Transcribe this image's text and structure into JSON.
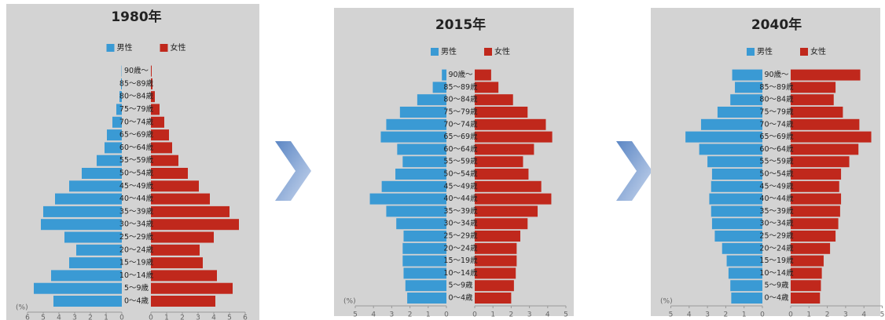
{
  "chart_data": [
    {
      "type": "pyramid",
      "title": "1980年",
      "unit_label": "(%)",
      "categories": [
        "0～4歳",
        "5～9歳",
        "10～14歳",
        "15～19歳",
        "20～24歳",
        "25～29歳",
        "30～34歳",
        "35～39歳",
        "40～44歳",
        "45～49歳",
        "50～54歳",
        "55～59歳",
        "60～64歳",
        "65～69歳",
        "70～74歳",
        "75～79歳",
        "80～84歳",
        "85～89歳",
        "90歳～"
      ],
      "series": [
        {
          "name": "男性",
          "color": "#3a9ad4",
          "values": [
            4.35,
            5.6,
            4.5,
            3.35,
            2.9,
            3.65,
            5.15,
            5.0,
            4.25,
            3.35,
            2.55,
            1.6,
            1.1,
            0.95,
            0.6,
            0.35,
            0.15,
            0.05,
            0.02
          ]
        },
        {
          "name": "女性",
          "color": "#c0281c",
          "values": [
            4.1,
            5.2,
            4.2,
            3.3,
            3.1,
            4.0,
            5.6,
            5.0,
            3.75,
            3.05,
            2.35,
            1.75,
            1.35,
            1.15,
            0.85,
            0.55,
            0.25,
            0.1,
            0.05
          ]
        }
      ],
      "xlim": [
        0,
        6
      ],
      "xticks": [
        0,
        1,
        2,
        3,
        4,
        5,
        6
      ]
    },
    {
      "type": "pyramid",
      "title": "2015年",
      "unit_label": "(%)",
      "categories": [
        "0～4歳",
        "5～9歳",
        "10～14歳",
        "15～19歳",
        "20～24歳",
        "25～29歳",
        "30～34歳",
        "35～39歳",
        "40～44歳",
        "45～49歳",
        "50～54歳",
        "55～59歳",
        "60～64歳",
        "65～69歳",
        "70～74歳",
        "75～79歳",
        "80～84歳",
        "85～89歳",
        "90歳～"
      ],
      "series": [
        {
          "name": "男性",
          "color": "#3a9ad4",
          "values": [
            2.15,
            2.25,
            2.35,
            2.4,
            2.4,
            2.35,
            2.75,
            3.3,
            4.2,
            3.55,
            2.8,
            2.4,
            2.7,
            3.6,
            3.3,
            2.55,
            1.6,
            0.75,
            0.25
          ]
        },
        {
          "name": "女性",
          "color": "#c0281c",
          "values": [
            2.0,
            2.15,
            2.25,
            2.3,
            2.3,
            2.5,
            2.9,
            3.45,
            4.2,
            3.65,
            2.95,
            2.65,
            3.25,
            4.25,
            3.9,
            2.9,
            2.1,
            1.3,
            0.9
          ]
        }
      ],
      "xlim": [
        0,
        5
      ],
      "xticks": [
        0,
        1,
        2,
        3,
        4,
        5
      ]
    },
    {
      "type": "pyramid",
      "title": "2040年",
      "unit_label": "(%)",
      "categories": [
        "0～4歳",
        "5～9歳",
        "10～14歳",
        "15～19歳",
        "20～24歳",
        "25～29歳",
        "30～34歳",
        "35～39歳",
        "40～44歳",
        "45～49歳",
        "50～54歳",
        "55～59歳",
        "60～64歳",
        "65～69歳",
        "70～74歳",
        "75～79歳",
        "80～84歳",
        "85～89歳",
        "90歳～"
      ],
      "series": [
        {
          "name": "男性",
          "color": "#3a9ad4",
          "values": [
            1.7,
            1.75,
            1.85,
            1.95,
            2.2,
            2.6,
            2.75,
            2.8,
            2.9,
            2.8,
            2.75,
            3.0,
            3.45,
            4.2,
            3.35,
            2.45,
            1.75,
            1.5,
            1.65
          ]
        },
        {
          "name": "女性",
          "color": "#c0281c",
          "values": [
            1.6,
            1.65,
            1.7,
            1.8,
            2.15,
            2.45,
            2.6,
            2.7,
            2.75,
            2.65,
            2.75,
            3.2,
            3.7,
            4.4,
            3.75,
            2.85,
            2.35,
            2.45,
            3.8
          ]
        }
      ],
      "xlim": [
        0,
        5
      ],
      "xticks": [
        0,
        1,
        2,
        3,
        4,
        5
      ]
    }
  ]
}
